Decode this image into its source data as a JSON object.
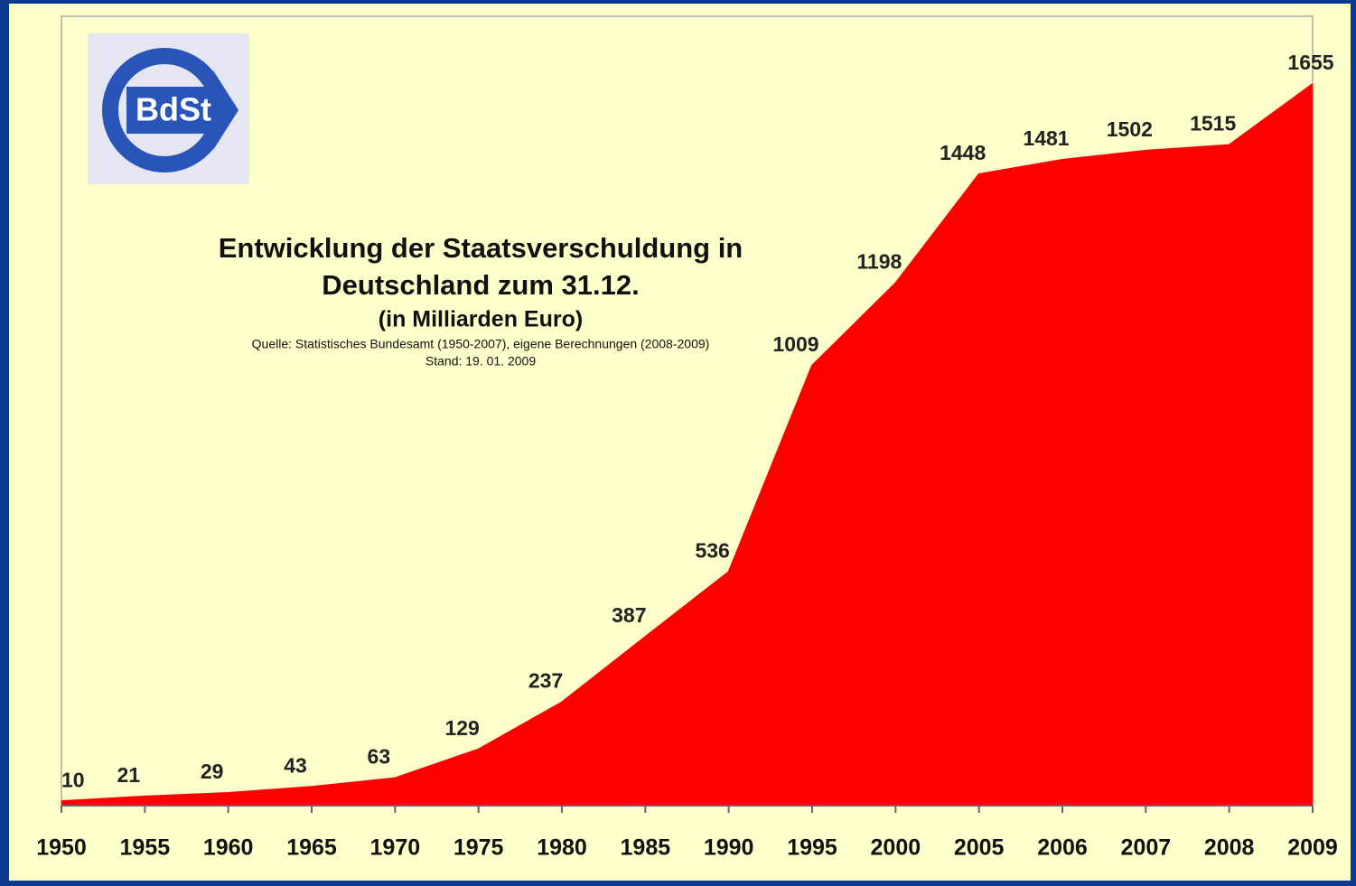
{
  "chart_data": {
    "type": "area",
    "title": [
      "Entwicklung der Staatsverschuldung in",
      "Deutschland zum 31.12."
    ],
    "subtitle": "(in Milliarden Euro)",
    "notes": [
      "Quelle: Statistisches Bundesamt (1950-2007), eigene Berechnungen (2008-2009)",
      "Stand: 19. 01. 2009"
    ],
    "logo": "BdSt",
    "categories": [
      "1950",
      "1955",
      "1960",
      "1965",
      "1970",
      "1975",
      "1980",
      "1985",
      "1990",
      "1995",
      "2000",
      "2005",
      "2006",
      "2007",
      "2008",
      "2009"
    ],
    "values": [
      10,
      21,
      29,
      43,
      63,
      129,
      237,
      387,
      536,
      1009,
      1198,
      1448,
      1481,
      1502,
      1515,
      1655
    ],
    "color": "#ff0000"
  }
}
